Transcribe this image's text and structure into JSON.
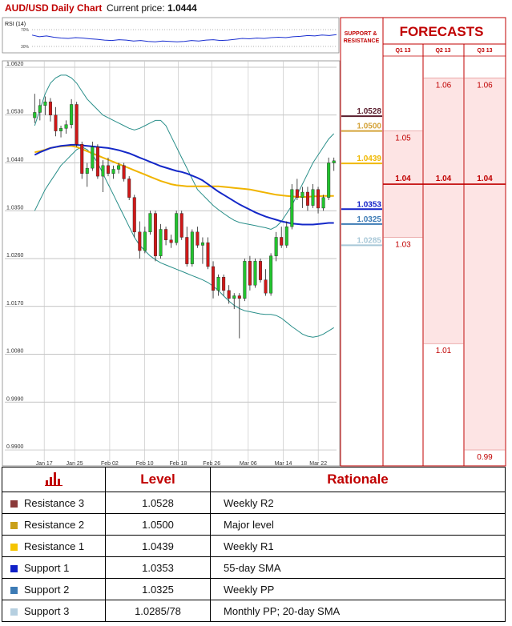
{
  "header": {
    "title": "AUD/USD Daily Chart",
    "price_label": "Current price:",
    "price_value": "1.0444"
  },
  "rsi": {
    "label": "RSI (14)",
    "ticks": [
      "70%",
      "30%"
    ],
    "values": [
      57,
      53,
      55,
      52,
      50,
      49,
      51,
      50,
      48,
      47,
      45,
      44,
      46,
      45,
      43,
      44,
      42,
      41,
      43,
      42,
      41,
      42,
      44,
      43,
      45,
      46,
      44,
      45,
      47,
      49,
      48,
      50,
      49,
      51,
      52,
      51,
      53,
      54,
      56,
      55,
      57,
      56,
      58
    ]
  },
  "forecasts": {
    "title": "FORECASTS",
    "sr_header": "SUPPORT & RESISTANCE",
    "quarters": [
      "Q1 13",
      "Q2 13",
      "Q3 13"
    ],
    "columns": [
      {
        "quarter": "Q1 13",
        "values": [
          "1.05",
          "1.04",
          "1.03"
        ]
      },
      {
        "quarter": "Q2 13",
        "values": [
          "1.06",
          "1.04",
          "1.01"
        ]
      },
      {
        "quarter": "Q3 13",
        "values": [
          "1.06",
          "1.04",
          "0.99"
        ]
      }
    ]
  },
  "chart_data": {
    "type": "candlestick",
    "title": "AUD/USD Daily Chart",
    "y_ticks": [
      "1.0620",
      "1.0530",
      "1.0440",
      "1.0350",
      "1.0260",
      "1.0170",
      "1.0080",
      "0.9990",
      "0.9900"
    ],
    "ylim": [
      0.9885,
      1.0626
    ],
    "x_ticks": [
      "Jan 17",
      "Jan 25",
      "Feb 02",
      "Feb 10",
      "Feb 18",
      "Feb 26",
      "Mar 06",
      "Mar 14",
      "Mar 22"
    ],
    "candles": [
      {
        "o": 1.0525,
        "h": 1.057,
        "l": 1.0515,
        "c": 1.0535
      },
      {
        "o": 1.0535,
        "h": 1.056,
        "l": 1.052,
        "c": 1.0548
      },
      {
        "o": 1.0548,
        "h": 1.0565,
        "l": 1.053,
        "c": 1.0555
      },
      {
        "o": 1.0555,
        "h": 1.0562,
        "l": 1.0518,
        "c": 1.053
      },
      {
        "o": 1.053,
        "h": 1.0545,
        "l": 1.049,
        "c": 1.05
      },
      {
        "o": 1.05,
        "h": 1.051,
        "l": 1.0488,
        "c": 1.0505
      },
      {
        "o": 1.0505,
        "h": 1.052,
        "l": 1.0495,
        "c": 1.0512
      },
      {
        "o": 1.0512,
        "h": 1.056,
        "l": 1.0505,
        "c": 1.055
      },
      {
        "o": 1.055,
        "h": 1.0555,
        "l": 1.047,
        "c": 1.0475
      },
      {
        "o": 1.0475,
        "h": 1.048,
        "l": 1.041,
        "c": 1.042
      },
      {
        "o": 1.042,
        "h": 1.044,
        "l": 1.0395,
        "c": 1.043
      },
      {
        "o": 1.043,
        "h": 1.048,
        "l": 1.0425,
        "c": 1.047
      },
      {
        "o": 1.047,
        "h": 1.0475,
        "l": 1.041,
        "c": 1.0415
      },
      {
        "o": 1.0415,
        "h": 1.0445,
        "l": 1.0385,
        "c": 1.0435
      },
      {
        "o": 1.0435,
        "h": 1.045,
        "l": 1.0415,
        "c": 1.042
      },
      {
        "o": 1.042,
        "h": 1.0435,
        "l": 1.041,
        "c": 1.0428
      },
      {
        "o": 1.0428,
        "h": 1.044,
        "l": 1.042,
        "c": 1.0435
      },
      {
        "o": 1.0435,
        "h": 1.044,
        "l": 1.0405,
        "c": 1.041
      },
      {
        "o": 1.041,
        "h": 1.0415,
        "l": 1.037,
        "c": 1.0375
      },
      {
        "o": 1.0375,
        "h": 1.038,
        "l": 1.03,
        "c": 1.031
      },
      {
        "o": 1.031,
        "h": 1.033,
        "l": 1.026,
        "c": 1.0275
      },
      {
        "o": 1.0275,
        "h": 1.032,
        "l": 1.027,
        "c": 1.031
      },
      {
        "o": 1.031,
        "h": 1.035,
        "l": 1.0305,
        "c": 1.0345
      },
      {
        "o": 1.0345,
        "h": 1.035,
        "l": 1.0255,
        "c": 1.0265
      },
      {
        "o": 1.0265,
        "h": 1.0325,
        "l": 1.026,
        "c": 1.0315
      },
      {
        "o": 1.0315,
        "h": 1.032,
        "l": 1.0285,
        "c": 1.0295
      },
      {
        "o": 1.0295,
        "h": 1.0305,
        "l": 1.028,
        "c": 1.029
      },
      {
        "o": 1.029,
        "h": 1.035,
        "l": 1.0285,
        "c": 1.0345
      },
      {
        "o": 1.0345,
        "h": 1.035,
        "l": 1.0295,
        "c": 1.03
      },
      {
        "o": 1.03,
        "h": 1.032,
        "l": 1.0245,
        "c": 1.025
      },
      {
        "o": 1.025,
        "h": 1.0315,
        "l": 1.0245,
        "c": 1.031
      },
      {
        "o": 1.031,
        "h": 1.032,
        "l": 1.028,
        "c": 1.0285
      },
      {
        "o": 1.0285,
        "h": 1.03,
        "l": 1.025,
        "c": 1.029
      },
      {
        "o": 1.029,
        "h": 1.03,
        "l": 1.024,
        "c": 1.0245
      },
      {
        "o": 1.0245,
        "h": 1.0255,
        "l": 1.0185,
        "c": 1.02
      },
      {
        "o": 1.02,
        "h": 1.023,
        "l": 1.019,
        "c": 1.0225
      },
      {
        "o": 1.0225,
        "h": 1.023,
        "l": 1.019,
        "c": 1.02
      },
      {
        "o": 1.02,
        "h": 1.021,
        "l": 1.0175,
        "c": 1.0185
      },
      {
        "o": 1.0185,
        "h": 1.0195,
        "l": 1.0165,
        "c": 1.019
      },
      {
        "o": 1.019,
        "h": 1.0195,
        "l": 1.011,
        "c": 1.0185
      },
      {
        "o": 1.0185,
        "h": 1.026,
        "l": 1.018,
        "c": 1.0255
      },
      {
        "o": 1.0255,
        "h": 1.0265,
        "l": 1.02,
        "c": 1.021
      },
      {
        "o": 1.021,
        "h": 1.026,
        "l": 1.0205,
        "c": 1.0255
      },
      {
        "o": 1.0255,
        "h": 1.026,
        "l": 1.0215,
        "c": 1.022
      },
      {
        "o": 1.022,
        "h": 1.024,
        "l": 1.019,
        "c": 1.0195
      },
      {
        "o": 1.0195,
        "h": 1.027,
        "l": 1.019,
        "c": 1.0265
      },
      {
        "o": 1.0265,
        "h": 1.031,
        "l": 1.0255,
        "c": 1.03
      },
      {
        "o": 1.03,
        "h": 1.032,
        "l": 1.028,
        "c": 1.0285
      },
      {
        "o": 1.0285,
        "h": 1.033,
        "l": 1.028,
        "c": 1.032
      },
      {
        "o": 1.032,
        "h": 1.04,
        "l": 1.0315,
        "c": 1.039
      },
      {
        "o": 1.039,
        "h": 1.041,
        "l": 1.037,
        "c": 1.0375
      },
      {
        "o": 1.0375,
        "h": 1.0395,
        "l": 1.0355,
        "c": 1.0385
      },
      {
        "o": 1.0385,
        "h": 1.0395,
        "l": 1.035,
        "c": 1.036
      },
      {
        "o": 1.036,
        "h": 1.04,
        "l": 1.0355,
        "c": 1.039
      },
      {
        "o": 1.039,
        "h": 1.0395,
        "l": 1.0345,
        "c": 1.0355
      },
      {
        "o": 1.0355,
        "h": 1.038,
        "l": 1.035,
        "c": 1.0375
      },
      {
        "o": 1.0375,
        "h": 1.045,
        "l": 1.037,
        "c": 1.044
      },
      {
        "o": 1.044,
        "h": 1.045,
        "l": 1.0425,
        "c": 1.0444
      }
    ],
    "sma55": [
      1.046,
      1.0462,
      1.0465,
      1.0468,
      1.047,
      1.0471,
      1.0472,
      1.0472,
      1.047,
      1.0466,
      1.0462,
      1.0458,
      1.0454,
      1.045,
      1.0446,
      1.0442,
      1.0438,
      1.0434,
      1.043,
      1.0426,
      1.0422,
      1.0418,
      1.0414,
      1.041,
      1.0406,
      1.0403,
      1.04,
      1.0398,
      1.0397,
      1.0396,
      1.0396,
      1.0396,
      1.0396,
      1.0396,
      1.0396,
      1.0396,
      1.0395,
      1.0394,
      1.0393,
      1.0392,
      1.0391,
      1.039,
      1.0388,
      1.0386,
      1.0384,
      1.0382,
      1.038,
      1.0379,
      1.0378,
      1.0377,
      1.0376,
      1.0376,
      1.0376,
      1.0377,
      1.0377,
      1.0378,
      1.0378,
      1.0378
    ],
    "sma20": [
      1.0455,
      1.046,
      1.0464,
      1.0468,
      1.047,
      1.0472,
      1.0473,
      1.0474,
      1.0474,
      1.0473,
      1.0472,
      1.0471,
      1.047,
      1.0469,
      1.0468,
      1.0466,
      1.0464,
      1.0461,
      1.0458,
      1.0454,
      1.045,
      1.0446,
      1.0442,
      1.0438,
      1.0434,
      1.0431,
      1.0428,
      1.0425,
      1.0423,
      1.042,
      1.0416,
      1.0412,
      1.0407,
      1.04,
      1.0393,
      1.0386,
      1.038,
      1.0374,
      1.0368,
      1.0362,
      1.0357,
      1.0352,
      1.0347,
      1.0343,
      1.0339,
      1.0336,
      1.0333,
      1.033,
      1.0328,
      1.0326,
      1.0325,
      1.0324,
      1.0324,
      1.0324,
      1.0325,
      1.0326,
      1.0327,
      1.0327
    ],
    "bb_upper": [
      1.051,
      1.054,
      1.057,
      1.059,
      1.06,
      1.0605,
      1.0605,
      1.06,
      1.059,
      1.0575,
      1.056,
      1.055,
      1.054,
      1.053,
      1.0525,
      1.052,
      1.0515,
      1.051,
      1.0505,
      1.0502,
      1.0505,
      1.051,
      1.0515,
      1.052,
      1.052,
      1.051,
      1.049,
      1.047,
      1.045,
      1.043,
      1.041,
      1.039,
      1.038,
      1.037,
      1.036,
      1.0352,
      1.0345,
      1.0338,
      1.0332,
      1.0328,
      1.0326,
      1.0324,
      1.0322,
      1.032,
      1.0318,
      1.0315,
      1.032,
      1.033,
      1.0345,
      1.036,
      1.038,
      1.04,
      1.042,
      1.044,
      1.0455,
      1.047,
      1.0485,
      1.0495
    ],
    "bb_lower": [
      1.035,
      1.037,
      1.039,
      1.0405,
      1.042,
      1.0435,
      1.0445,
      1.0455,
      1.0465,
      1.047,
      1.0465,
      1.0455,
      1.044,
      1.042,
      1.04,
      1.038,
      1.036,
      1.034,
      1.032,
      1.03,
      1.0285,
      1.0275,
      1.0265,
      1.0258,
      1.0252,
      1.0248,
      1.0244,
      1.024,
      1.0236,
      1.0232,
      1.0228,
      1.0224,
      1.022,
      1.0215,
      1.0208,
      1.02,
      1.019,
      1.018,
      1.0172,
      1.0166,
      1.0162,
      1.016,
      1.0158,
      1.0156,
      1.0155,
      1.0155,
      1.0153,
      1.0148,
      1.014,
      1.0132,
      1.0125,
      1.0118,
      1.0114,
      1.0112,
      1.0114,
      1.0118,
      1.0124,
      1.013
    ]
  },
  "levels": {
    "lines": [
      {
        "value": 1.0528,
        "label": "1.0528",
        "color": "#5a1e2e",
        "dashed": false
      },
      {
        "value": 1.05,
        "label": "1.0500",
        "color": "#d4a33a",
        "dashed": false
      },
      {
        "value": 1.0439,
        "label": "1.0439",
        "color": "#f0b800",
        "dashed": false
      },
      {
        "value": 1.0353,
        "label": "1.0353",
        "color": "#1020c8",
        "dashed": false
      },
      {
        "value": 1.0325,
        "label": "1.0325",
        "color": "#3d7bb5",
        "dashed": false
      },
      {
        "value": 1.0285,
        "label": "1.0285",
        "color": "#a8c8d8",
        "dashed": false
      }
    ]
  },
  "table": {
    "headers": {
      "level": "Level",
      "rationale": "Rationale"
    },
    "rows": [
      {
        "name": "Resistance 3",
        "level": "1.0528",
        "rationale": "Weekly R2",
        "color": "#8b3a3a"
      },
      {
        "name": "Resistance 2",
        "level": "1.0500",
        "rationale": "Major level",
        "color": "#c9a01a"
      },
      {
        "name": "Resistance 1",
        "level": "1.0439",
        "rationale": "Weekly R1",
        "color": "#f5c400"
      },
      {
        "name": "Support 1",
        "level": "1.0353",
        "rationale": "55-day SMA",
        "color": "#1020c8"
      },
      {
        "name": "Support 2",
        "level": "1.0325",
        "rationale": "Weekly PP",
        "color": "#3d7bb5"
      },
      {
        "name": "Support 3",
        "level": "1.0285/78",
        "rationale": "Monthly PP; 20-day SMA",
        "color": "#b6cfe0"
      }
    ]
  }
}
